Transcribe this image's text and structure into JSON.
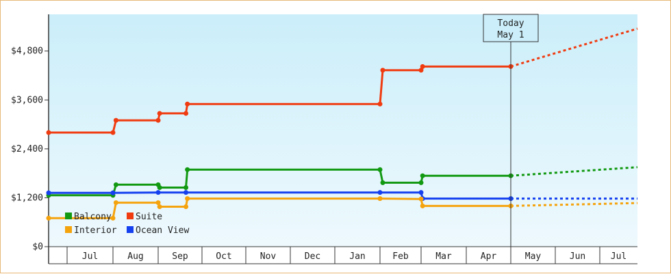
{
  "chart_data": {
    "type": "line",
    "title": "",
    "xlabel": "",
    "ylabel": "",
    "ylim": [
      0,
      5700
    ],
    "y_ticks": [
      {
        "value": 0,
        "label": "$0"
      },
      {
        "value": 1200,
        "label": "$1,200"
      },
      {
        "value": 2400,
        "label": "$2,400"
      },
      {
        "value": 3600,
        "label": "$3,600"
      },
      {
        "value": 4800,
        "label": "$4,800"
      }
    ],
    "x_tick_labels": [
      "Jul",
      "Aug",
      "Sep",
      "Oct",
      "Nov",
      "Dec",
      "Jan",
      "Feb",
      "Mar",
      "Apr",
      "May",
      "Jun",
      "Jul"
    ],
    "today_marker": {
      "line1": "Today",
      "line2": "May 1"
    },
    "colors": {
      "plot_bg_top": "#cbeefa",
      "plot_bg_bottom": "#eef9fd",
      "frame_border": "#e8b878"
    },
    "legend": {
      "placement": "bottom-left",
      "items": [
        {
          "label": "Balcony",
          "color": "#129912"
        },
        {
          "label": "Suite",
          "color": "#f03b10"
        },
        {
          "label": "Interior",
          "color": "#f5a30d"
        },
        {
          "label": "Ocean View",
          "color": "#1540ef"
        }
      ]
    },
    "series": [
      {
        "name": "Suite",
        "color": "#f03b10",
        "points": [
          [
            "Jun 1",
            2800
          ],
          [
            "Aug 1",
            2800
          ],
          [
            "Aug 3",
            3100
          ],
          [
            "Sep 1",
            3100
          ],
          [
            "Sep 2",
            3270
          ],
          [
            "Sep 20",
            3270
          ],
          [
            "Sep 21",
            3500
          ],
          [
            "Feb 1",
            3500
          ],
          [
            "Feb 3",
            4330
          ],
          [
            "Mar 1",
            4330
          ],
          [
            "Mar 2",
            4420
          ],
          [
            "May 1",
            4420
          ]
        ],
        "forecast": [
          [
            "May 1",
            4420
          ],
          [
            "Jul 31",
            5350
          ]
        ]
      },
      {
        "name": "Balcony",
        "color": "#129912",
        "points": [
          [
            "Jun 1",
            1260
          ],
          [
            "Aug 1",
            1260
          ],
          [
            "Aug 3",
            1520
          ],
          [
            "Sep 1",
            1520
          ],
          [
            "Sep 2",
            1450
          ],
          [
            "Sep 20",
            1450
          ],
          [
            "Sep 21",
            1890
          ],
          [
            "Feb 1",
            1890
          ],
          [
            "Feb 3",
            1570
          ],
          [
            "Mar 1",
            1570
          ],
          [
            "Mar 2",
            1740
          ],
          [
            "May 1",
            1740
          ]
        ],
        "forecast": [
          [
            "May 1",
            1740
          ],
          [
            "Jul 31",
            1950
          ]
        ]
      },
      {
        "name": "Ocean View",
        "color": "#1540ef",
        "points": [
          [
            "Jun 1",
            1320
          ],
          [
            "Aug 1",
            1320
          ],
          [
            "Aug 1",
            1320
          ],
          [
            "Sep 1",
            1330
          ],
          [
            "Sep 20",
            1330
          ],
          [
            "Feb 1",
            1330
          ],
          [
            "Mar 1",
            1330
          ],
          [
            "Mar 2",
            1180
          ],
          [
            "May 1",
            1180
          ]
        ],
        "forecast": [
          [
            "May 1",
            1180
          ],
          [
            "Jul 31",
            1180
          ]
        ]
      },
      {
        "name": "Interior",
        "color": "#f5a30d",
        "points": [
          [
            "Jun 1",
            700
          ],
          [
            "Aug 1",
            700
          ],
          [
            "Aug 3",
            1080
          ],
          [
            "Sep 1",
            1080
          ],
          [
            "Sep 2",
            980
          ],
          [
            "Sep 20",
            980
          ],
          [
            "Sep 21",
            1180
          ],
          [
            "Feb 1",
            1180
          ],
          [
            "Mar 1",
            1170
          ],
          [
            "Mar 2",
            1000
          ],
          [
            "May 1",
            1000
          ]
        ],
        "forecast": [
          [
            "May 1",
            1000
          ],
          [
            "Jul 31",
            1070
          ]
        ]
      }
    ]
  }
}
